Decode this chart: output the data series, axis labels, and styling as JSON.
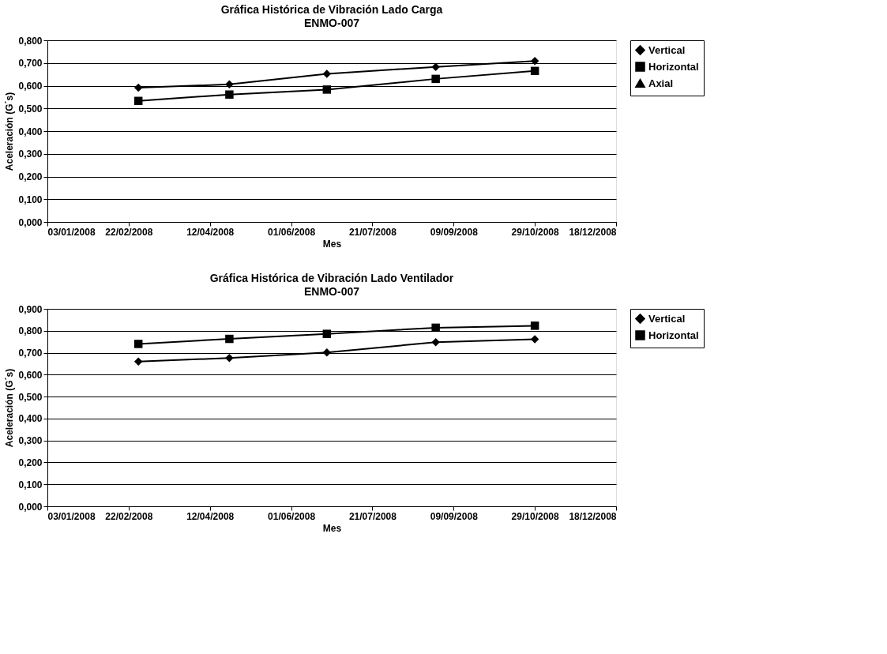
{
  "chart_data": [
    {
      "type": "line",
      "title": "Gráfica Histórica de Vibración Lado Carga",
      "subtitle": "ENMO-007",
      "xlabel": "Mes",
      "ylabel": "Aceleración (G´s)",
      "x": [
        "2008-02-28",
        "2008-04-24",
        "2008-06-23",
        "2008-08-29",
        "2008-10-29"
      ],
      "series": [
        {
          "name": "Vertical",
          "color": "#000000",
          "marker": "diamond",
          "values": [
            0.591,
            0.606,
            0.652,
            0.683,
            0.709
          ]
        },
        {
          "name": "Horizontal",
          "color": "#000000",
          "marker": "square",
          "values": [
            0.533,
            0.561,
            0.583,
            0.63,
            0.665
          ]
        },
        {
          "name": "Axial",
          "color": "#000000",
          "marker": "triangle",
          "values": [
            null,
            null,
            null,
            null,
            null
          ]
        }
      ],
      "xlim": [
        "2008-01-03",
        "2008-12-18"
      ],
      "xticks": [
        {
          "value": "2008-01-03",
          "label": "03/01/2008"
        },
        {
          "value": "2008-02-22",
          "label": "22/02/2008"
        },
        {
          "value": "2008-04-12",
          "label": "12/04/2008"
        },
        {
          "value": "2008-06-01",
          "label": "01/06/2008"
        },
        {
          "value": "2008-07-21",
          "label": "21/07/2008"
        },
        {
          "value": "2008-09-09",
          "label": "09/09/2008"
        },
        {
          "value": "2008-10-29",
          "label": "29/10/2008"
        },
        {
          "value": "2008-12-18",
          "label": "18/12/2008"
        }
      ],
      "ylim": [
        0,
        0.8
      ],
      "yticks": [
        {
          "value": 0,
          "label": "0,000"
        },
        {
          "value": 0.1,
          "label": "0,100"
        },
        {
          "value": 0.2,
          "label": "0,200"
        },
        {
          "value": 0.3,
          "label": "0,300"
        },
        {
          "value": 0.4,
          "label": "0,400"
        },
        {
          "value": 0.5,
          "label": "0,500"
        },
        {
          "value": 0.6,
          "label": "0,600"
        },
        {
          "value": 0.7,
          "label": "0,700"
        },
        {
          "value": 0.8,
          "label": "0,800"
        }
      ],
      "grid": "y",
      "legend": "right"
    },
    {
      "type": "line",
      "title": "Gráfica Histórica de Vibración Lado Ventilador",
      "subtitle": "ENMO-007",
      "xlabel": "Mes",
      "ylabel": "Aceleración (G´s)",
      "x": [
        "2008-02-28",
        "2008-04-24",
        "2008-06-23",
        "2008-08-29",
        "2008-10-29"
      ],
      "series": [
        {
          "name": "Vertical",
          "color": "#000000",
          "marker": "diamond",
          "values": [
            0.66,
            0.676,
            0.701,
            0.748,
            0.761
          ]
        },
        {
          "name": "Horizontal",
          "color": "#000000",
          "marker": "square",
          "values": [
            0.74,
            0.763,
            0.786,
            0.814,
            0.823
          ]
        }
      ],
      "xlim": [
        "2008-01-03",
        "2008-12-18"
      ],
      "xticks": [
        {
          "value": "2008-01-03",
          "label": "03/01/2008"
        },
        {
          "value": "2008-02-22",
          "label": "22/02/2008"
        },
        {
          "value": "2008-04-12",
          "label": "12/04/2008"
        },
        {
          "value": "2008-06-01",
          "label": "01/06/2008"
        },
        {
          "value": "2008-07-21",
          "label": "21/07/2008"
        },
        {
          "value": "2008-09-09",
          "label": "09/09/2008"
        },
        {
          "value": "2008-10-29",
          "label": "29/10/2008"
        },
        {
          "value": "2008-12-18",
          "label": "18/12/2008"
        }
      ],
      "ylim": [
        0,
        0.9
      ],
      "yticks": [
        {
          "value": 0,
          "label": "0,000"
        },
        {
          "value": 0.1,
          "label": "0,100"
        },
        {
          "value": 0.2,
          "label": "0,200"
        },
        {
          "value": 0.3,
          "label": "0,300"
        },
        {
          "value": 0.4,
          "label": "0,400"
        },
        {
          "value": 0.5,
          "label": "0,500"
        },
        {
          "value": 0.6,
          "label": "0,600"
        },
        {
          "value": 0.7,
          "label": "0,700"
        },
        {
          "value": 0.8,
          "label": "0,800"
        },
        {
          "value": 0.9,
          "label": "0,900"
        }
      ],
      "grid": "y",
      "legend": "right"
    }
  ]
}
